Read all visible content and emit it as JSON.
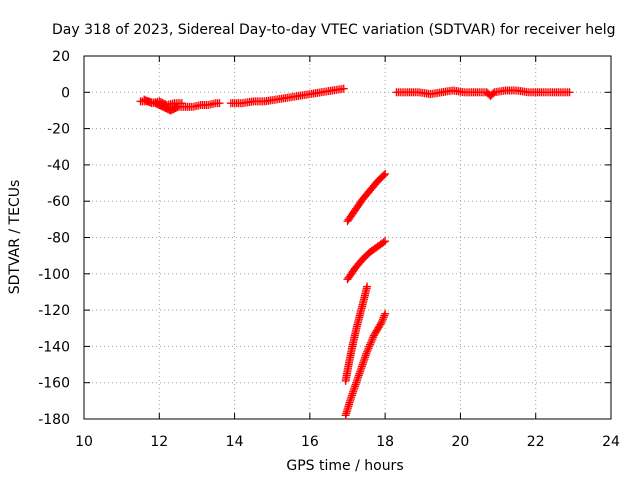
{
  "chart_data": {
    "type": "scatter",
    "title": "Day 318 of 2023, Sidereal Day-to-day VTEC variation (SDTVAR) for receiver helg",
    "xlabel": "GPS time / hours",
    "ylabel": "SDTVAR / TECUs",
    "xlim": [
      10,
      24
    ],
    "ylim": [
      -180,
      20
    ],
    "x_ticks": [
      10,
      12,
      14,
      16,
      18,
      20,
      22,
      24
    ],
    "y_ticks": [
      20,
      0,
      -20,
      -40,
      -60,
      -80,
      -100,
      -120,
      -140,
      -160,
      -180
    ],
    "grid": true,
    "marker": "+",
    "color": "#ff0000",
    "series": [
      {
        "x": [
          11.5,
          11.7,
          11.9,
          12.0,
          12.1,
          12.2,
          12.3,
          12.4,
          12.5,
          12.7,
          12.9,
          13.1,
          13.3,
          13.5,
          13.6
        ],
        "y": [
          -5,
          -5,
          -6,
          -7,
          -8,
          -9,
          -10,
          -9,
          -8,
          -8,
          -8,
          -7,
          -7,
          -6,
          -6
        ]
      },
      {
        "x": [
          11.6,
          11.8,
          12.0,
          12.2,
          12.4,
          12.6
        ],
        "y": [
          -4,
          -6,
          -5,
          -7,
          -6,
          -6
        ]
      },
      {
        "x": [
          13.9,
          14.2,
          14.5,
          14.8,
          15.1,
          15.4,
          15.7,
          16.0,
          16.3,
          16.6,
          16.9
        ],
        "y": [
          -6,
          -6,
          -5,
          -5,
          -4,
          -3,
          -2,
          -1,
          0,
          1,
          2
        ]
      },
      {
        "x": [
          18.3,
          18.6,
          18.9,
          19.2,
          19.5,
          19.8,
          20.1,
          20.4,
          20.7,
          20.8,
          20.9,
          21.2,
          21.5,
          21.8,
          22.1,
          22.4,
          22.7,
          22.9
        ],
        "y": [
          0,
          0,
          0,
          -1,
          0,
          1,
          0,
          0,
          0,
          -2,
          0,
          1,
          1,
          0,
          0,
          0,
          0,
          0
        ]
      },
      {
        "x": [
          17.0,
          17.2,
          17.4,
          17.6,
          17.8,
          18.0
        ],
        "y": [
          -71,
          -65,
          -59,
          -54,
          -49,
          -45
        ]
      },
      {
        "x": [
          17.0,
          17.2,
          17.4,
          17.6,
          17.8,
          18.0
        ],
        "y": [
          -103,
          -97,
          -92,
          -88,
          -85,
          -82
        ]
      },
      {
        "x": [
          16.95,
          17.05,
          17.15,
          17.25,
          17.35,
          17.45,
          17.52
        ],
        "y": [
          -159,
          -148,
          -138,
          -129,
          -121,
          -113,
          -107
        ]
      },
      {
        "x": [
          16.95,
          17.1,
          17.3,
          17.5,
          17.7,
          17.9,
          18.0
        ],
        "y": [
          -178,
          -168,
          -156,
          -144,
          -134,
          -127,
          -122
        ]
      }
    ]
  }
}
